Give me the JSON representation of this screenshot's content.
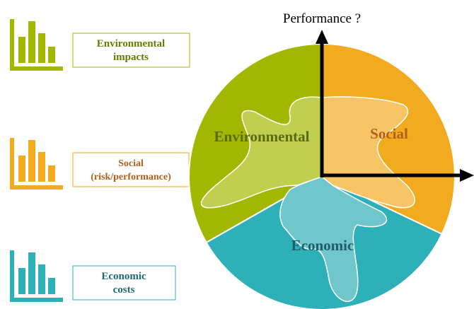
{
  "axis_label": "Performance ?",
  "indicators": [
    {
      "lines": [
        "Environmental",
        "impacts"
      ]
    },
    {
      "lines": [
        "Social",
        "(risk/performance)"
      ]
    },
    {
      "lines": [
        "Economic",
        "costs"
      ]
    }
  ],
  "sectors": [
    {
      "label": "Environmental"
    },
    {
      "label": "Social"
    },
    {
      "label": "Economic"
    }
  ]
}
